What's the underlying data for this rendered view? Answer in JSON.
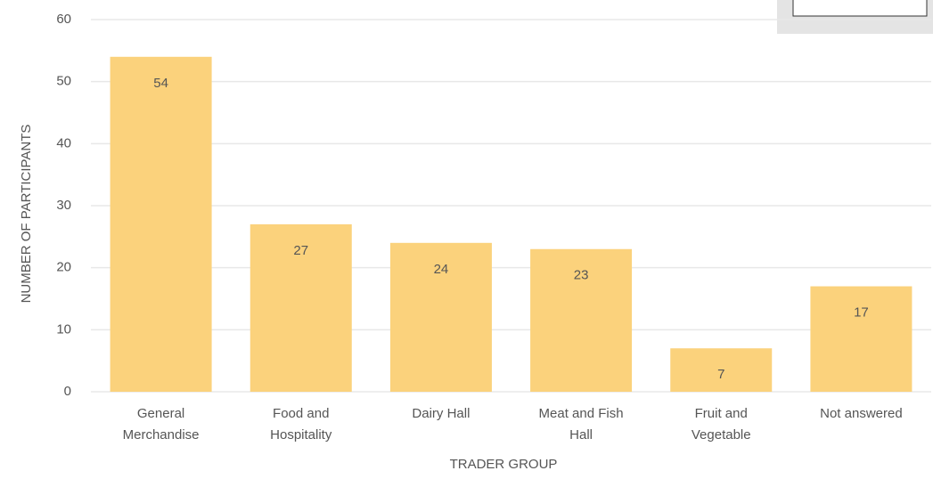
{
  "chart_data": {
    "type": "bar",
    "categories": [
      "General Merchandise",
      "Food and Hospitality",
      "Dairy Hall",
      "Meat and Fish Hall",
      "Fruit and Vegetable",
      "Not answered"
    ],
    "values": [
      54,
      27,
      24,
      23,
      7,
      17
    ],
    "color": "#fbd27c",
    "ylabel": "NUMBER OF PARTICIPANTS",
    "xlabel": "TRADER GROUP",
    "ylim": [
      0,
      60
    ],
    "yticks": [
      0,
      10,
      20,
      30,
      40,
      50,
      60
    ],
    "grid": true
  }
}
